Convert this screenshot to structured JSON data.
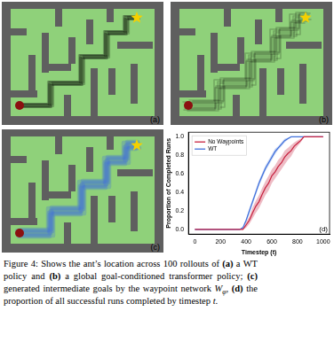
{
  "panels": [
    {
      "label": "(a)"
    },
    {
      "label": "(b)"
    },
    {
      "label": "(c)"
    }
  ],
  "chart_data": {
    "type": "line",
    "panel_label": "(d)",
    "x_label": "Timestep (t)",
    "y_label": "Proportion of Completed Runs",
    "x": [
      0,
      350,
      375,
      400,
      425,
      450,
      475,
      500,
      525,
      550,
      575,
      600,
      625,
      650,
      675,
      700,
      725,
      750,
      775,
      800,
      825,
      850,
      875,
      900,
      950,
      1000
    ],
    "series": [
      {
        "name": "No Waypoints",
        "color": "#c8213f",
        "values": [
          0,
          0,
          0,
          0.05,
          0.1,
          0.18,
          0.25,
          0.3,
          0.38,
          0.45,
          0.5,
          0.58,
          0.62,
          0.68,
          0.72,
          0.78,
          0.82,
          0.85,
          0.9,
          0.93,
          0.96,
          1,
          1,
          1,
          1,
          1
        ],
        "lower": [
          0,
          0,
          0,
          0.02,
          0.06,
          0.12,
          0.18,
          0.23,
          0.3,
          0.37,
          0.42,
          0.5,
          0.55,
          0.6,
          0.65,
          0.7,
          0.75,
          0.79,
          0.85,
          0.9,
          0.94,
          1,
          1,
          1,
          1,
          1
        ],
        "upper": [
          0,
          0,
          0.01,
          0.08,
          0.14,
          0.24,
          0.31,
          0.37,
          0.45,
          0.52,
          0.58,
          0.65,
          0.69,
          0.75,
          0.79,
          0.85,
          0.88,
          0.91,
          0.94,
          0.96,
          0.98,
          1,
          1,
          1,
          1,
          1
        ]
      },
      {
        "name": "WT",
        "color": "#3f6fdc",
        "values": [
          0,
          0,
          0.02,
          0.1,
          0.2,
          0.3,
          0.4,
          0.5,
          0.58,
          0.66,
          0.72,
          0.78,
          0.84,
          0.88,
          0.92,
          0.96,
          0.98,
          1,
          1,
          1,
          1,
          1,
          1,
          1,
          1,
          1
        ],
        "lower": [
          0,
          0,
          0.01,
          0.08,
          0.17,
          0.27,
          0.37,
          0.47,
          0.55,
          0.63,
          0.69,
          0.75,
          0.81,
          0.86,
          0.9,
          0.94,
          0.97,
          1,
          1,
          1,
          1,
          1,
          1,
          1,
          1,
          1
        ],
        "upper": [
          0,
          0,
          0.03,
          0.12,
          0.23,
          0.33,
          0.43,
          0.53,
          0.61,
          0.69,
          0.75,
          0.81,
          0.87,
          0.9,
          0.94,
          0.98,
          0.99,
          1,
          1,
          1,
          1,
          1,
          1,
          1,
          1,
          1
        ]
      }
    ],
    "xlim": [
      -50,
      1050
    ],
    "xticks": [
      0,
      200,
      400,
      600,
      800,
      1000
    ],
    "ylim": [
      -0.05,
      1.05
    ],
    "yticks": [
      {
        "value": 0,
        "label": "0.0"
      },
      0.2,
      0.4,
      0.6,
      0.8,
      {
        "value": 1,
        "label": "1.0"
      }
    ],
    "grid": false,
    "legend": "upper left"
  },
  "caption": [
    {
      "text": "Figure 4: Shows the ant’s location across 100 rollouts of ",
      "style": "normal"
    },
    {
      "text": "(a)",
      "style": "bold"
    },
    {
      "text": " a WT policy and ",
      "style": "normal"
    },
    {
      "text": "(b)",
      "style": "bold"
    },
    {
      "text": " a global goal-conditioned transformer policy; ",
      "style": "normal"
    },
    {
      "text": "(c)",
      "style": "bold"
    },
    {
      "text": " generated intermediate goals by the waypoint network ",
      "style": "normal"
    },
    {
      "text": "W",
      "style": "italic"
    },
    {
      "text": "φ",
      "style": "subscript"
    },
    {
      "text": ", ",
      "style": "normal"
    },
    {
      "text": "(d)",
      "style": "bold"
    },
    {
      "text": " the proportion of all successful runs completed by timestep ",
      "style": "normal"
    },
    {
      "text": "t",
      "style": "italic"
    },
    {
      "text": ".",
      "style": "normal"
    }
  ]
}
